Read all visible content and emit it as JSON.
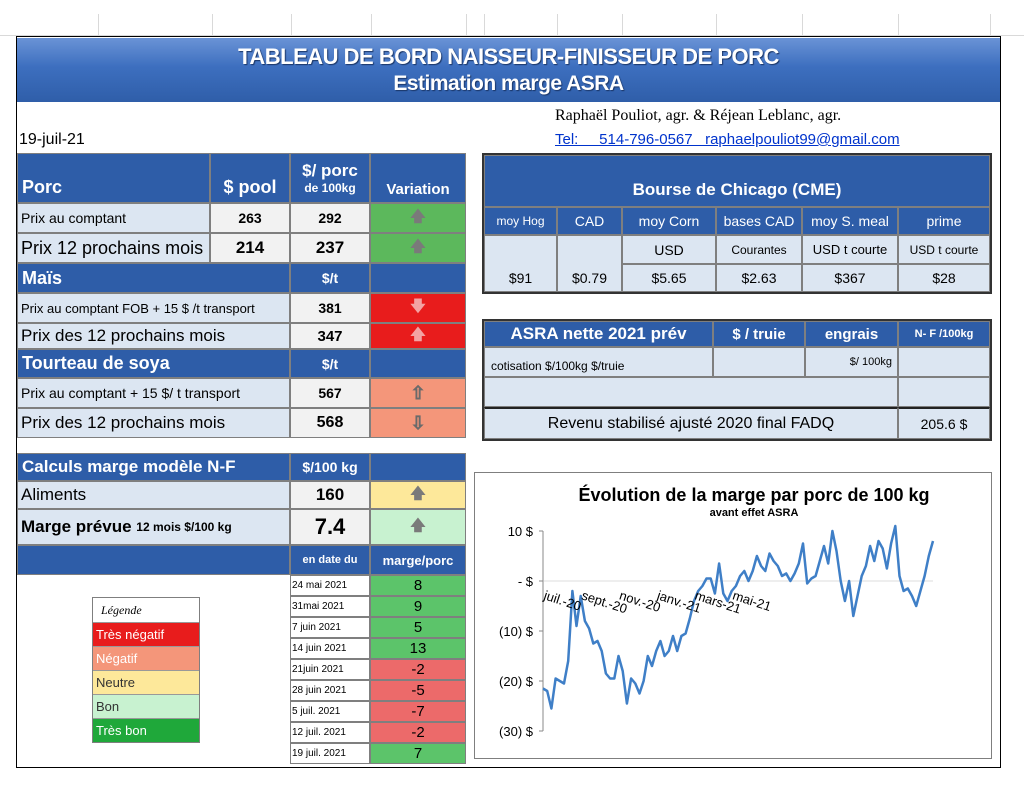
{
  "header": {
    "title_line1": "TABLEAU  DE BORD NAISSEUR-FINISSEUR  DE PORC",
    "title_line2": "Estimation marge ASRA",
    "authors": "Raphaël Pouliot, agr.   &   Réjean Leblanc, agr.",
    "contact": "Tel:     514-796-0567   raphaelpouliot99@gmail.com",
    "date": "19-juil-21"
  },
  "porc_table": {
    "col_section": "Porc",
    "col_pool": "$ pool",
    "col_porc_line1": "$/ porc",
    "col_porc_line2": "de 100kg",
    "col_variation": "Variation",
    "rows": [
      {
        "label": "Prix au comptant",
        "pool": "263",
        "porc": "292",
        "arrow": "🡅"
      },
      {
        "label": "Prix 12 prochains mois",
        "pool": "214",
        "porc": "237",
        "arrow": "🡅"
      }
    ],
    "mais_title": "Maïs",
    "mais_unit": "$/t",
    "mais_rows": [
      {
        "label": "Prix au comptant  FOB + 15 $ /t transport",
        "value": "381",
        "arrow": "🡇"
      },
      {
        "label": "Prix des 12 prochains mois",
        "value": "347",
        "arrow": "🡅"
      }
    ],
    "soya_title": "Tourteau de soya",
    "soya_unit": "$/t",
    "soya_rows": [
      {
        "label": "Prix au comptant  + 15 $/ t  transport",
        "value": "567",
        "arrow": "⇧"
      },
      {
        "label": "Prix des 12 prochains mois",
        "value": "568",
        "arrow": "⇩"
      }
    ]
  },
  "marge_table": {
    "title": "Calculs marge  modèle N-F",
    "unit": "$/100 kg",
    "aliments_label": "Aliments",
    "aliments_value": "160",
    "marge_label": "Marge prévue",
    "marge_label_small": "12 mois $/100 kg",
    "marge_value": "7.4",
    "arrow": "🡅",
    "col_date": "en date du",
    "col_marge": "marge/porc",
    "history": [
      {
        "date": "24 mai 2021",
        "marge": "8",
        "status": "green"
      },
      {
        "date": "31mai 2021",
        "marge": "9",
        "status": "green"
      },
      {
        "date": "7 juin 2021",
        "marge": "5",
        "status": "green"
      },
      {
        "date": "14 juin 2021",
        "marge": "13",
        "status": "green"
      },
      {
        "date": "21juin 2021",
        "marge": "-2",
        "status": "red"
      },
      {
        "date": "28 juin 2021",
        "marge": "-5",
        "status": "red"
      },
      {
        "date": "5 juil. 2021",
        "marge": "-7",
        "status": "red"
      },
      {
        "date": "12 juil. 2021",
        "marge": "-2",
        "status": "red"
      },
      {
        "date": "19 juil. 2021",
        "marge": "7",
        "status": "green"
      }
    ]
  },
  "legend": {
    "title": "Légende",
    "items": [
      {
        "label": "Très négatif",
        "color": "#e81c1c",
        "text_color": "#ffffff"
      },
      {
        "label": "Négatif",
        "color": "#f4967a",
        "text_color": "#ffffff"
      },
      {
        "label": "Neutre",
        "color": "#fde89a",
        "text_color": "#333333"
      },
      {
        "label": "Bon",
        "color": "#c8f2d0",
        "text_color": "#333333"
      },
      {
        "label": "Très bon",
        "color": "#1fa83a",
        "text_color": "#ffffff"
      }
    ]
  },
  "chicago": {
    "title": "Bourse de Chicago (CME)",
    "headers": [
      "moy Hog",
      "CAD",
      "moy Corn",
      "bases CAD",
      "moy S. meal",
      "prime"
    ],
    "subheaders": [
      "",
      "",
      "USD",
      "Courantes",
      "USD t courte",
      "USD t courte"
    ],
    "values": [
      "$91",
      "$0.79",
      "$5.65",
      "$2.63",
      "$367",
      "$28"
    ]
  },
  "asra": {
    "title": "ASRA nette 2021 prév",
    "col_truie": "$ / truie",
    "col_engrais": "engrais",
    "col_nf": "N- F /100kg",
    "cotisation_label": "cotisation $/100kg  $/truie",
    "engrais_unit": "$/ 100kg",
    "revenu_label": "Revenu stabilisé ajusté 2020 final FADQ",
    "revenu_value": "205.6 $"
  },
  "chart_data": {
    "type": "line",
    "title": "Évolution de la marge par porc de 100 kg",
    "subtitle": "avant effet ASRA",
    "xlabel": "",
    "ylabel": "",
    "ylim": [
      -30,
      10
    ],
    "y_ticks": [
      10,
      0,
      -10,
      -20,
      -30
    ],
    "y_tick_labels": [
      "10 $",
      "-  $",
      "(10) $",
      "(20) $",
      "(30) $"
    ],
    "x_tick_labels": [
      "juil.-20",
      "sept.-20",
      "nov.-20",
      "janv.-21",
      "mars-21",
      "mai-21"
    ],
    "x_tick_index": [
      0,
      9,
      18,
      27,
      36,
      45
    ],
    "series": [
      {
        "values": [
          -21.5,
          -22,
          -25.5,
          -19.5,
          -20,
          -20.5,
          -16,
          -2,
          -9,
          -3,
          -8,
          -9.5,
          -12.5,
          -12,
          -14,
          -18.5,
          -19.5,
          -19.5,
          -15,
          -18,
          -24.5,
          -19.5,
          -20.5,
          -22.5,
          -20,
          -15,
          -17,
          -14,
          -12,
          -15,
          -14,
          -11,
          -14,
          -11,
          -10.5,
          -7.5,
          -4,
          -2,
          -1,
          0.5,
          0.5,
          -2.5,
          3.5,
          -2.5,
          -4,
          -2,
          -1,
          1,
          2,
          0,
          2,
          5,
          3,
          2,
          5.5,
          4,
          3,
          1,
          1.5,
          0,
          1.5,
          3.5,
          7.5,
          -0.5,
          0.5,
          1,
          4,
          7,
          3.5,
          10,
          6,
          0,
          -4,
          0,
          -7,
          -3,
          1,
          3,
          7,
          4,
          8,
          6.5,
          2.5,
          7.5,
          11,
          1,
          -2,
          -1.5,
          -3,
          -5,
          -2,
          1,
          5,
          8
        ]
      }
    ],
    "line_color": "#3f7fc7"
  }
}
